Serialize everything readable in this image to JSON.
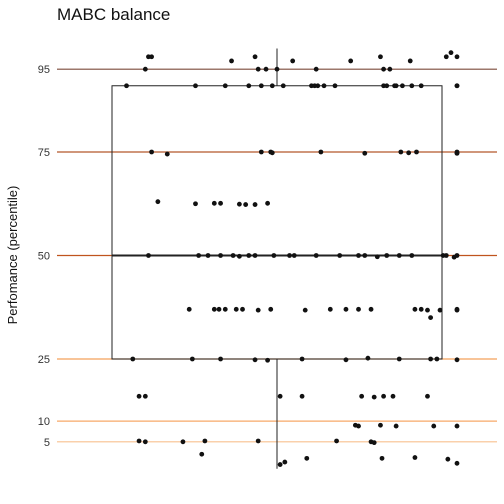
{
  "chart_data": {
    "type": "box-jitter",
    "title": "MABC balance",
    "xlabel": "",
    "ylabel": "Perfomance (percentile)",
    "yticks": [
      5,
      10,
      25,
      50,
      75,
      95
    ],
    "ylim": [
      -5,
      102
    ],
    "grid": false,
    "reference_lines": [
      {
        "y": 95,
        "color": "#7b4a3a"
      },
      {
        "y": 75,
        "color": "#b5582a"
      },
      {
        "y": 50,
        "color": "#c0541e"
      },
      {
        "y": 25,
        "color": "#f4a05a"
      },
      {
        "y": 10,
        "color": "#f7a869"
      },
      {
        "y": 5,
        "color": "#f9c08f"
      }
    ],
    "box": {
      "min": -1.5,
      "q1": 25,
      "median": 50,
      "q3": 91,
      "max": 100
    },
    "points": [
      {
        "x": -0.96,
        "y": 91
      },
      {
        "x": -0.84,
        "y": 95
      },
      {
        "x": -0.82,
        "y": 98
      },
      {
        "x": -0.8,
        "y": 98
      },
      {
        "x": -0.52,
        "y": 91
      },
      {
        "x": -0.33,
        "y": 91
      },
      {
        "x": -0.29,
        "y": 97
      },
      {
        "x": -0.14,
        "y": 98
      },
      {
        "x": -0.12,
        "y": 95
      },
      {
        "x": -0.07,
        "y": 95
      },
      {
        "x": 0.0,
        "y": 95
      },
      {
        "x": 0.1,
        "y": 97
      },
      {
        "x": 0.25,
        "y": 95
      },
      {
        "x": -0.18,
        "y": 91
      },
      {
        "x": -0.1,
        "y": 91
      },
      {
        "x": -0.03,
        "y": 91
      },
      {
        "x": 0.04,
        "y": 91
      },
      {
        "x": 0.22,
        "y": 91
      },
      {
        "x": 0.24,
        "y": 91
      },
      {
        "x": 0.26,
        "y": 91
      },
      {
        "x": 0.3,
        "y": 91
      },
      {
        "x": 0.37,
        "y": 91
      },
      {
        "x": 0.47,
        "y": 97
      },
      {
        "x": 0.68,
        "y": 91
      },
      {
        "x": 0.66,
        "y": 98
      },
      {
        "x": 0.68,
        "y": 95
      },
      {
        "x": 0.7,
        "y": 91
      },
      {
        "x": 0.75,
        "y": 91
      },
      {
        "x": 0.72,
        "y": 95
      },
      {
        "x": 0.76,
        "y": 91
      },
      {
        "x": 0.8,
        "y": 91
      },
      {
        "x": 0.85,
        "y": 97
      },
      {
        "x": 0.86,
        "y": 91
      },
      {
        "x": 0.92,
        "y": 91
      },
      {
        "x": 1.08,
        "y": 98
      },
      {
        "x": 1.11,
        "y": 99
      },
      {
        "x": 1.18,
        "y": 91
      },
      {
        "x": 1.28,
        "y": 91
      },
      {
        "x": 1.44,
        "y": 98
      },
      {
        "x": -0.8,
        "y": 75
      },
      {
        "x": -0.7,
        "y": 74.5
      },
      {
        "x": -0.1,
        "y": 75
      },
      {
        "x": -0.04,
        "y": 75
      },
      {
        "x": -0.03,
        "y": 74.8
      },
      {
        "x": 0.28,
        "y": 75
      },
      {
        "x": 0.56,
        "y": 74.7
      },
      {
        "x": 0.79,
        "y": 75
      },
      {
        "x": 0.84,
        "y": 74.8
      },
      {
        "x": 0.89,
        "y": 75
      },
      {
        "x": 1.28,
        "y": 74.7
      },
      {
        "x": 1.3,
        "y": 74.7
      },
      {
        "x": 1.37,
        "y": 75
      },
      {
        "x": -0.76,
        "y": 63
      },
      {
        "x": -0.52,
        "y": 62.5
      },
      {
        "x": -0.4,
        "y": 62.6
      },
      {
        "x": -0.36,
        "y": 62.6
      },
      {
        "x": -0.24,
        "y": 62.4
      },
      {
        "x": -0.2,
        "y": 62.3
      },
      {
        "x": -0.14,
        "y": 62.3
      },
      {
        "x": -0.06,
        "y": 62.6
      },
      {
        "x": -0.82,
        "y": 50
      },
      {
        "x": -0.5,
        "y": 50
      },
      {
        "x": -0.44,
        "y": 50
      },
      {
        "x": -0.36,
        "y": 50
      },
      {
        "x": -0.28,
        "y": 50
      },
      {
        "x": -0.24,
        "y": 49.8
      },
      {
        "x": -0.18,
        "y": 50
      },
      {
        "x": -0.14,
        "y": 50
      },
      {
        "x": -0.02,
        "y": 50
      },
      {
        "x": 0.08,
        "y": 50
      },
      {
        "x": 0.11,
        "y": 50
      },
      {
        "x": 0.25,
        "y": 50
      },
      {
        "x": 0.4,
        "y": 50
      },
      {
        "x": 0.52,
        "y": 50
      },
      {
        "x": 0.56,
        "y": 50
      },
      {
        "x": 0.64,
        "y": 49.7
      },
      {
        "x": 0.7,
        "y": 50
      },
      {
        "x": 0.78,
        "y": 50
      },
      {
        "x": 0.86,
        "y": 50
      },
      {
        "x": 1.06,
        "y": 50
      },
      {
        "x": 1.08,
        "y": 50
      },
      {
        "x": 1.13,
        "y": 49.6
      },
      {
        "x": 1.36,
        "y": 50
      },
      {
        "x": -0.56,
        "y": 37
      },
      {
        "x": -0.4,
        "y": 37
      },
      {
        "x": -0.37,
        "y": 37
      },
      {
        "x": -0.33,
        "y": 37
      },
      {
        "x": -0.26,
        "y": 37
      },
      {
        "x": -0.22,
        "y": 37
      },
      {
        "x": -0.12,
        "y": 36.8
      },
      {
        "x": -0.04,
        "y": 37
      },
      {
        "x": 0.18,
        "y": 36.8
      },
      {
        "x": 0.34,
        "y": 37
      },
      {
        "x": 0.44,
        "y": 37
      },
      {
        "x": 0.52,
        "y": 37
      },
      {
        "x": 0.6,
        "y": 37
      },
      {
        "x": 0.88,
        "y": 37
      },
      {
        "x": 0.92,
        "y": 37
      },
      {
        "x": 0.96,
        "y": 36.8
      },
      {
        "x": 0.98,
        "y": 35
      },
      {
        "x": 1.04,
        "y": 36.8
      },
      {
        "x": 1.3,
        "y": 36.8
      },
      {
        "x": 1.42,
        "y": 37
      },
      {
        "x": -0.92,
        "y": 25
      },
      {
        "x": -0.54,
        "y": 25
      },
      {
        "x": -0.36,
        "y": 25
      },
      {
        "x": -0.14,
        "y": 24.8
      },
      {
        "x": -0.06,
        "y": 24.7
      },
      {
        "x": 0.16,
        "y": 25
      },
      {
        "x": 0.44,
        "y": 24.8
      },
      {
        "x": 0.58,
        "y": 25.2
      },
      {
        "x": 0.78,
        "y": 25
      },
      {
        "x": 0.98,
        "y": 25
      },
      {
        "x": 1.02,
        "y": 25
      },
      {
        "x": 1.4,
        "y": 24.8
      },
      {
        "x": -0.88,
        "y": 16
      },
      {
        "x": -0.84,
        "y": 16
      },
      {
        "x": 0.02,
        "y": 16
      },
      {
        "x": 0.16,
        "y": 16
      },
      {
        "x": 0.54,
        "y": 16
      },
      {
        "x": 0.62,
        "y": 15.8
      },
      {
        "x": 0.68,
        "y": 16
      },
      {
        "x": 0.74,
        "y": 16
      },
      {
        "x": 0.96,
        "y": 16
      },
      {
        "x": 0.5,
        "y": 9
      },
      {
        "x": 0.52,
        "y": 8.8
      },
      {
        "x": 0.66,
        "y": 9
      },
      {
        "x": 0.76,
        "y": 8.8
      },
      {
        "x": 1.0,
        "y": 8.8
      },
      {
        "x": 1.44,
        "y": 8.8
      },
      {
        "x": -0.88,
        "y": 5.2
      },
      {
        "x": -0.84,
        "y": 5
      },
      {
        "x": -0.6,
        "y": 5
      },
      {
        "x": -0.46,
        "y": 5.2
      },
      {
        "x": -0.12,
        "y": 5.2
      },
      {
        "x": 0.38,
        "y": 5.2
      },
      {
        "x": 0.6,
        "y": 5
      },
      {
        "x": 0.62,
        "y": 4.8
      },
      {
        "x": -0.48,
        "y": 2
      },
      {
        "x": 0.02,
        "y": -0.5
      },
      {
        "x": 0.05,
        "y": 0.1
      },
      {
        "x": 0.19,
        "y": 1
      },
      {
        "x": 0.67,
        "y": 1
      },
      {
        "x": 0.88,
        "y": 1.2
      },
      {
        "x": 1.09,
        "y": 0.8
      },
      {
        "x": 1.35,
        "y": -0.2
      }
    ]
  }
}
